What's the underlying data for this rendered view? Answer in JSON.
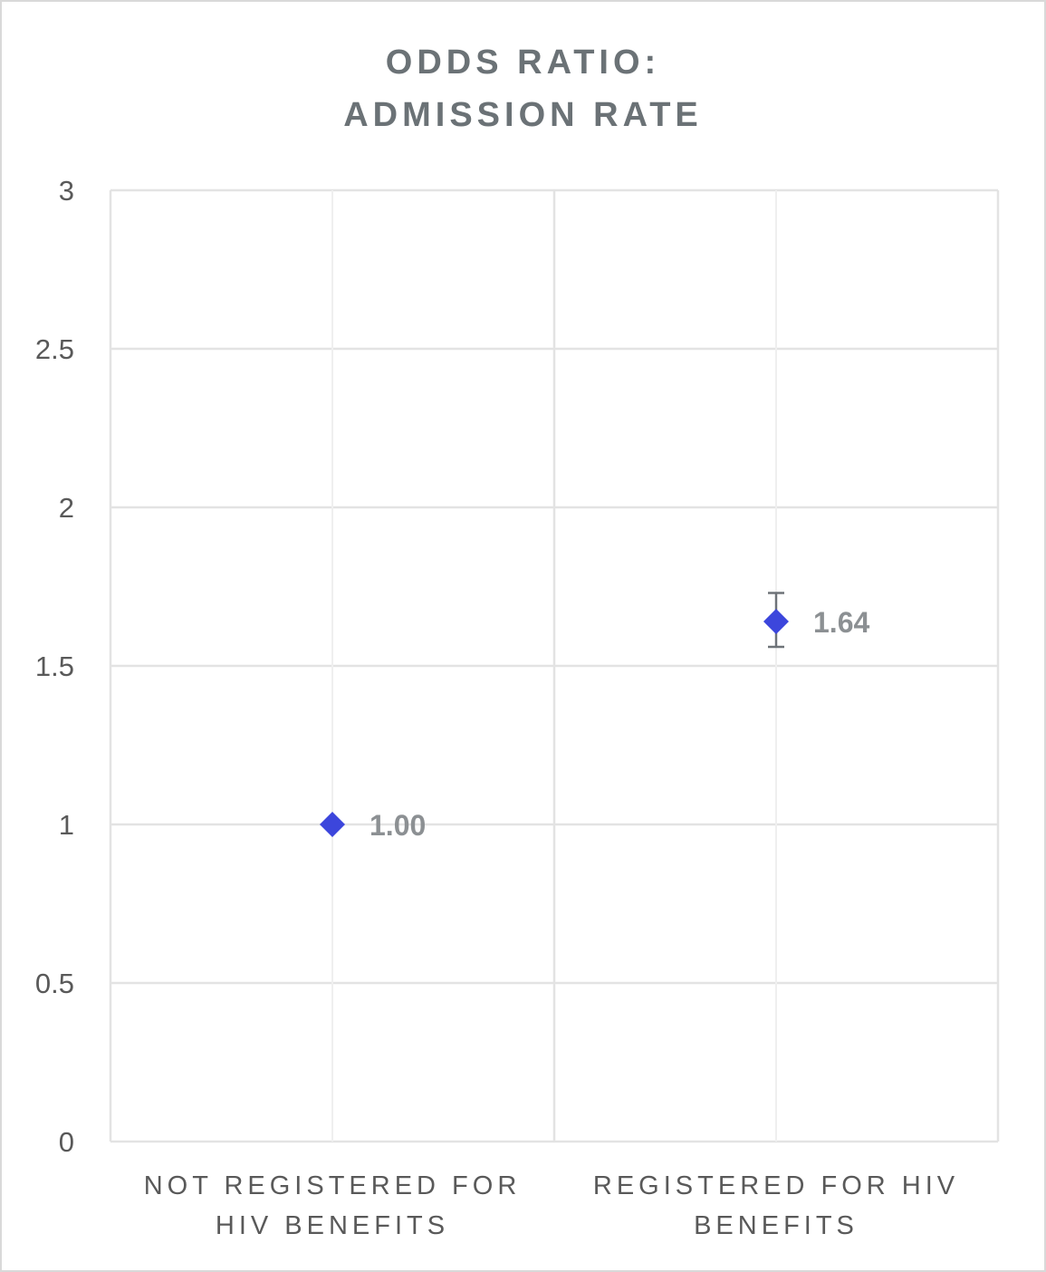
{
  "chart_data": {
    "type": "scatter",
    "title": [
      "ODDS RATIO:",
      "ADMISSION RATE"
    ],
    "xlabel": "",
    "ylabel": "",
    "categories": [
      [
        "NOT REGISTERED FOR",
        "HIV BENEFITS"
      ],
      [
        "REGISTERED FOR HIV",
        "BENEFITS"
      ]
    ],
    "values": [
      1.0,
      1.64
    ],
    "data_labels": [
      "1.00",
      "1.64"
    ],
    "error_bars": [
      null,
      {
        "low": 1.56,
        "high": 1.73
      }
    ],
    "ylim": [
      0,
      3
    ],
    "yticks": [
      0,
      0.5,
      1,
      1.5,
      2,
      2.5,
      3
    ],
    "ytick_labels": [
      "0",
      "0.5",
      "1",
      "1.5",
      "2",
      "2.5",
      "3"
    ],
    "grid": true,
    "legend": "none",
    "marker": "diamond",
    "colors": {
      "marker": "#3c46dc",
      "title": "#6b7276",
      "grid": "#e3e3e3",
      "tick_text": "#595959",
      "data_label": "#8c9093",
      "error_bar": "#6e7378"
    }
  }
}
